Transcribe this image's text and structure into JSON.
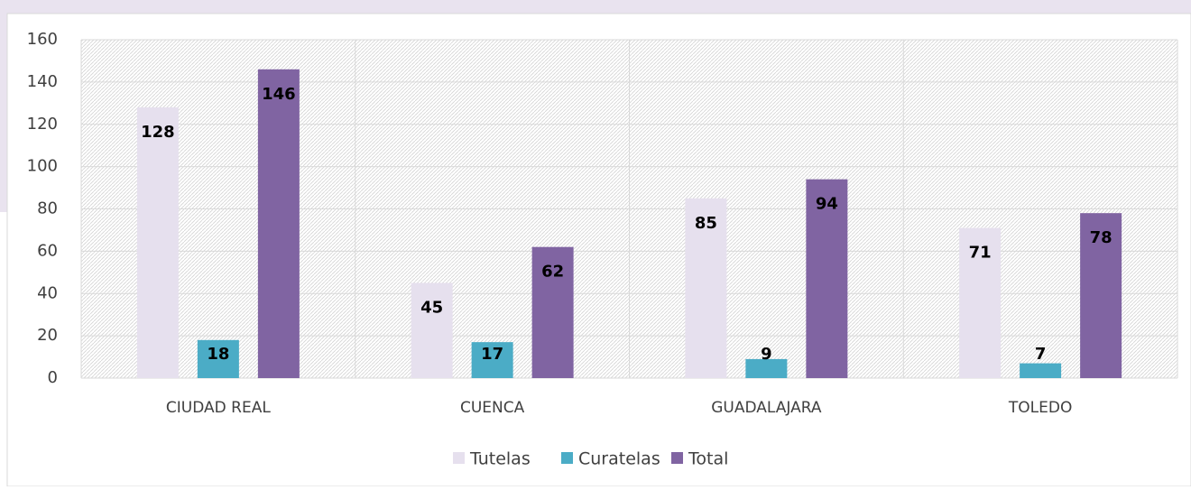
{
  "chart_data": {
    "type": "bar",
    "categories": [
      "CIUDAD REAL",
      "CUENCA",
      "GUADALAJARA",
      "TOLEDO"
    ],
    "series": [
      {
        "name": "Tutelas",
        "color": "#e6e0ee",
        "values": [
          128,
          45,
          85,
          71
        ]
      },
      {
        "name": "Curatelas",
        "color": "#4bacc6",
        "values": [
          18,
          17,
          9,
          7
        ]
      },
      {
        "name": "Total",
        "color": "#8064a2",
        "values": [
          146,
          62,
          94,
          78
        ]
      }
    ],
    "ylim": [
      0,
      160
    ],
    "yticks": [
      0,
      20,
      40,
      60,
      80,
      100,
      120,
      140,
      160
    ],
    "grid": true,
    "legend": "bottom"
  }
}
